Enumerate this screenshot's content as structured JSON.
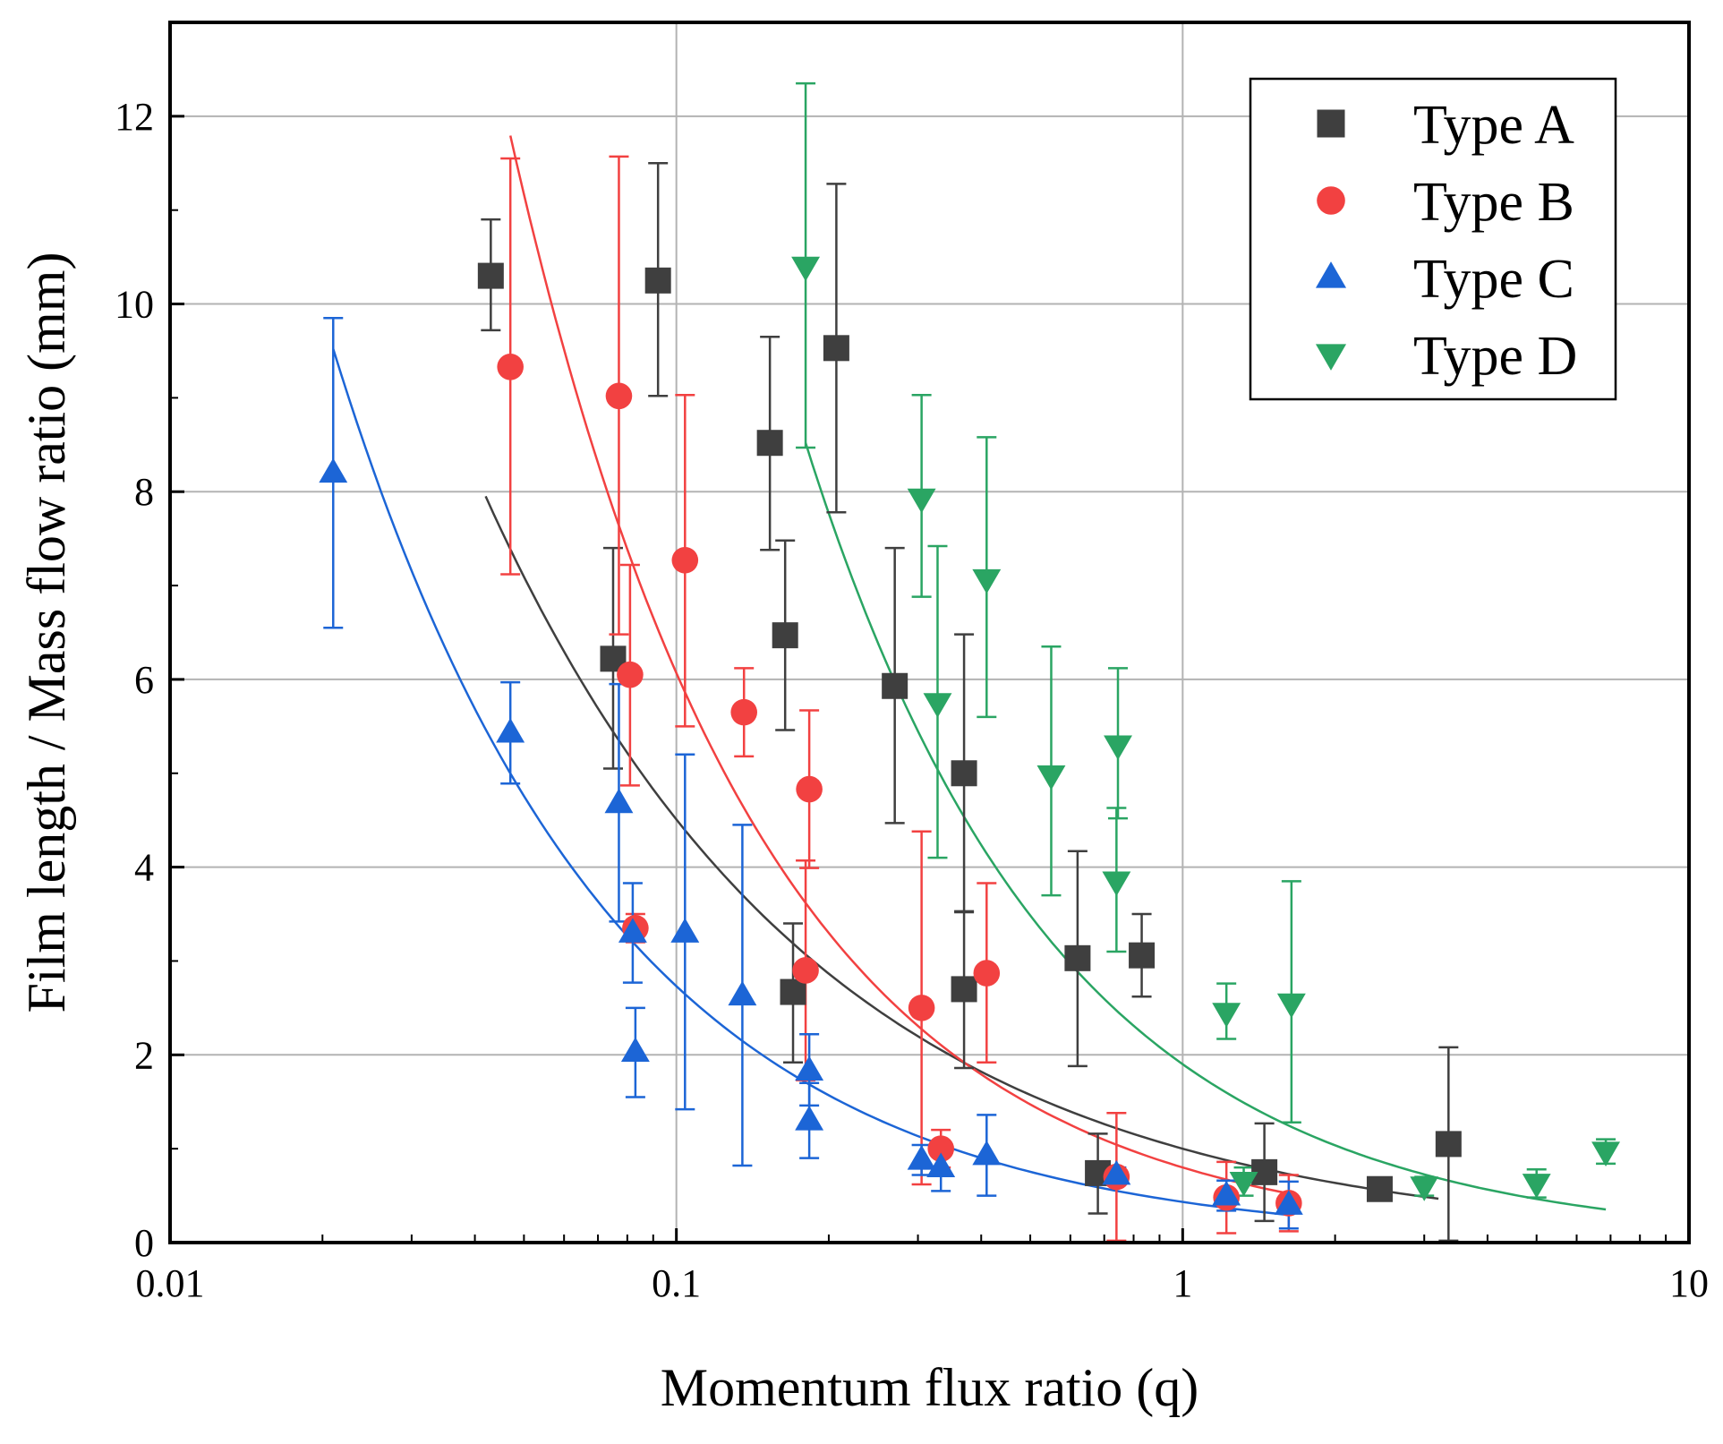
{
  "chart_data": {
    "type": "scatter",
    "title": "",
    "xlabel": "Momentum flux ratio (q)",
    "ylabel": "Film length / Mass flow ratio (mm)",
    "x_scale": "log",
    "xlim": [
      0.01,
      10
    ],
    "ylim": [
      0,
      13
    ],
    "x_ticks": [
      0.01,
      0.1,
      1,
      10
    ],
    "x_tick_labels": [
      "0.01",
      "0.1",
      "1",
      "10"
    ],
    "y_ticks": [
      0,
      2,
      4,
      6,
      8,
      10,
      12
    ],
    "y_tick_labels": [
      "0",
      "2",
      "4",
      "6",
      "8",
      "10",
      "12"
    ],
    "grid": true,
    "legend_position": "top-right",
    "series": [
      {
        "name": "Type A",
        "color": "#3f3f3f",
        "marker": "square",
        "points": [
          {
            "x": 0.043,
            "y": 10.3,
            "lo": 9.72,
            "hi": 10.9
          },
          {
            "x": 0.075,
            "y": 6.22,
            "lo": 5.05,
            "hi": 7.4
          },
          {
            "x": 0.092,
            "y": 10.25,
            "lo": 9.02,
            "hi": 11.5
          },
          {
            "x": 0.153,
            "y": 8.52,
            "lo": 7.38,
            "hi": 9.65
          },
          {
            "x": 0.164,
            "y": 6.47,
            "lo": 5.46,
            "hi": 7.48
          },
          {
            "x": 0.17,
            "y": 2.67,
            "lo": 1.92,
            "hi": 3.4
          },
          {
            "x": 0.207,
            "y": 9.53,
            "lo": 7.78,
            "hi": 11.28
          },
          {
            "x": 0.27,
            "y": 5.93,
            "lo": 4.47,
            "hi": 7.4
          },
          {
            "x": 0.37,
            "y": 5.0,
            "lo": 3.52,
            "hi": 6.48
          },
          {
            "x": 0.37,
            "y": 2.7,
            "lo": 1.86,
            "hi": 3.53
          },
          {
            "x": 0.62,
            "y": 3.03,
            "lo": 1.88,
            "hi": 4.17
          },
          {
            "x": 0.68,
            "y": 0.74,
            "lo": 0.31,
            "hi": 1.16
          },
          {
            "x": 0.83,
            "y": 3.06,
            "lo": 2.62,
            "hi": 3.5
          },
          {
            "x": 1.45,
            "y": 0.75,
            "lo": 0.23,
            "hi": 1.27
          },
          {
            "x": 2.45,
            "y": 0.57,
            "lo": 0.57,
            "hi": 0.57
          },
          {
            "x": 3.35,
            "y": 1.05,
            "lo": 0.02,
            "hi": 2.08
          }
        ],
        "fit": {
          "a": 1.0,
          "b": -0.654,
          "c": 2.5,
          "xmin": 0.042,
          "xmax": 3.2
        }
      },
      {
        "name": "Type B",
        "color": "#f24141",
        "marker": "circle",
        "points": [
          {
            "x": 0.047,
            "y": 9.33,
            "lo": 7.12,
            "hi": 11.55
          },
          {
            "x": 0.077,
            "y": 9.02,
            "lo": 6.48,
            "hi": 11.57
          },
          {
            "x": 0.081,
            "y": 6.05,
            "lo": 4.87,
            "hi": 7.22
          },
          {
            "x": 0.083,
            "y": 3.35,
            "lo": 3.2,
            "hi": 3.5
          },
          {
            "x": 0.104,
            "y": 7.27,
            "lo": 5.5,
            "hi": 9.03
          },
          {
            "x": 0.136,
            "y": 5.65,
            "lo": 5.18,
            "hi": 6.12
          },
          {
            "x": 0.183,
            "y": 4.83,
            "lo": 3.99,
            "hi": 5.67
          },
          {
            "x": 0.18,
            "y": 2.9,
            "lo": 1.73,
            "hi": 4.07
          },
          {
            "x": 0.305,
            "y": 2.5,
            "lo": 0.62,
            "hi": 4.38
          },
          {
            "x": 0.333,
            "y": 1.0,
            "lo": 0.8,
            "hi": 1.2
          },
          {
            "x": 0.41,
            "y": 2.87,
            "lo": 1.92,
            "hi": 3.83
          },
          {
            "x": 0.74,
            "y": 0.7,
            "lo": 0.02,
            "hi": 1.38
          },
          {
            "x": 1.22,
            "y": 0.48,
            "lo": 0.1,
            "hi": 0.86
          },
          {
            "x": 1.62,
            "y": 0.42,
            "lo": 0.12,
            "hi": 0.72
          }
        ],
        "fit": {
          "a": 0.8,
          "b": -0.88,
          "c": 2.0,
          "xmin": 0.047,
          "xmax": 1.6
        }
      },
      {
        "name": "Type C",
        "color": "#1c65d6",
        "marker": "triangle-up",
        "points": [
          {
            "x": 0.021,
            "y": 8.2,
            "lo": 6.55,
            "hi": 9.85
          },
          {
            "x": 0.047,
            "y": 5.43,
            "lo": 4.89,
            "hi": 5.97
          },
          {
            "x": 0.077,
            "y": 4.68,
            "lo": 3.42,
            "hi": 5.95
          },
          {
            "x": 0.082,
            "y": 3.3,
            "lo": 2.77,
            "hi": 3.83
          },
          {
            "x": 0.083,
            "y": 2.03,
            "lo": 1.55,
            "hi": 2.5
          },
          {
            "x": 0.104,
            "y": 3.3,
            "lo": 1.42,
            "hi": 5.2
          },
          {
            "x": 0.135,
            "y": 2.63,
            "lo": 0.82,
            "hi": 4.45
          },
          {
            "x": 0.183,
            "y": 1.83,
            "lo": 1.46,
            "hi": 2.22
          },
          {
            "x": 0.183,
            "y": 1.3,
            "lo": 0.9,
            "hi": 1.7
          },
          {
            "x": 0.305,
            "y": 0.88,
            "lo": 0.72,
            "hi": 1.04
          },
          {
            "x": 0.333,
            "y": 0.8,
            "lo": 0.55,
            "hi": 1.05
          },
          {
            "x": 0.41,
            "y": 0.93,
            "lo": 0.5,
            "hi": 1.36
          },
          {
            "x": 0.74,
            "y": 0.72,
            "lo": 0.64,
            "hi": 0.8
          },
          {
            "x": 1.22,
            "y": 0.5,
            "lo": 0.34,
            "hi": 0.66
          },
          {
            "x": 1.62,
            "y": 0.4,
            "lo": 0.15,
            "hi": 0.65
          }
        ],
        "fit": {
          "a": 0.433,
          "b": -0.8,
          "c": 1.56,
          "xmin": 0.021,
          "xmax": 1.62
        }
      },
      {
        "name": "Type D",
        "color": "#2aa563",
        "marker": "triangle-down",
        "points": [
          {
            "x": 0.18,
            "y": 10.4,
            "lo": 8.47,
            "hi": 12.35
          },
          {
            "x": 0.305,
            "y": 7.93,
            "lo": 6.88,
            "hi": 9.03
          },
          {
            "x": 0.328,
            "y": 5.75,
            "lo": 4.1,
            "hi": 7.42
          },
          {
            "x": 0.41,
            "y": 7.07,
            "lo": 5.6,
            "hi": 8.58
          },
          {
            "x": 0.55,
            "y": 4.98,
            "lo": 3.7,
            "hi": 6.35
          },
          {
            "x": 0.745,
            "y": 5.3,
            "lo": 4.52,
            "hi": 6.12
          },
          {
            "x": 0.74,
            "y": 3.85,
            "lo": 3.1,
            "hi": 4.63
          },
          {
            "x": 1.22,
            "y": 2.45,
            "lo": 2.17,
            "hi": 2.76
          },
          {
            "x": 1.32,
            "y": 0.65,
            "lo": 0.5,
            "hi": 0.8
          },
          {
            "x": 1.64,
            "y": 2.55,
            "lo": 1.28,
            "hi": 3.85
          },
          {
            "x": 3.0,
            "y": 0.6,
            "lo": 0.5,
            "hi": 0.7
          },
          {
            "x": 5.0,
            "y": 0.63,
            "lo": 0.48,
            "hi": 0.78
          },
          {
            "x": 6.85,
            "y": 0.97,
            "lo": 0.84,
            "hi": 1.1
          }
        ],
        "fit": {
          "a": 1.9,
          "b": -0.875,
          "c": 1.56,
          "xmin": 0.18,
          "xmax": 6.85
        }
      }
    ]
  }
}
